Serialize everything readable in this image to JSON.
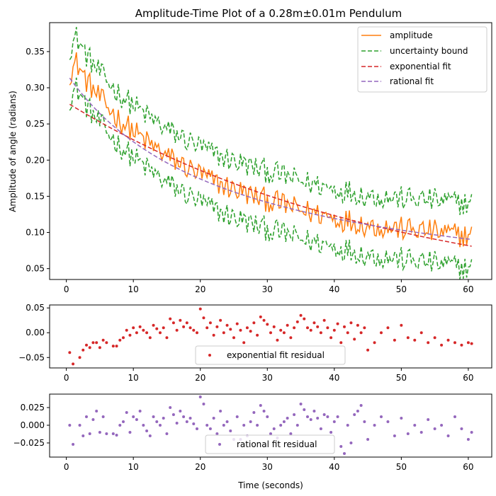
{
  "chart_data": [
    {
      "type": "line",
      "title": "Amplitude-Time Plot of a 0.28m±0.01m Pendulum",
      "xlabel": "",
      "ylabel": "Amplitude of angle (radians)",
      "xlim": [
        -2.5,
        63.5
      ],
      "ylim": [
        0.035,
        0.39
      ],
      "xticks": [
        0,
        10,
        20,
        30,
        40,
        50,
        60
      ],
      "yticks": [
        0.05,
        0.1,
        0.15,
        0.2,
        0.25,
        0.3,
        0.35
      ],
      "yticklabels": [
        "0.05",
        "0.10",
        "0.15",
        "0.20",
        "0.25",
        "0.30",
        "0.35"
      ],
      "grid": false,
      "legend_position": "top-right",
      "series": [
        {
          "name": "amplitude",
          "color": "#ff7f0e",
          "style": "solid",
          "role": "amplitude"
        },
        {
          "name": "uncertainty bound",
          "color": "#2ca02c",
          "style": "dashed",
          "role": "bound"
        },
        {
          "name": "exponential fit",
          "color": "#d62728",
          "style": "dashed",
          "role": "exp_fit"
        },
        {
          "name": "rational fit",
          "color": "#9467bd",
          "style": "dashed",
          "role": "rat_fit"
        }
      ],
      "amplitude_anchor_x": [
        0.5,
        1.5,
        3,
        5,
        8,
        10,
        12,
        15,
        18,
        20,
        22,
        25,
        28,
        30,
        33,
        35,
        38,
        40,
        43,
        45,
        48,
        50,
        53,
        55,
        58,
        60.5
      ],
      "amplitude_anchor_y": [
        0.32,
        0.335,
        0.31,
        0.285,
        0.255,
        0.24,
        0.225,
        0.205,
        0.19,
        0.18,
        0.17,
        0.16,
        0.15,
        0.145,
        0.137,
        0.13,
        0.125,
        0.12,
        0.115,
        0.11,
        0.107,
        0.105,
        0.103,
        0.101,
        0.097,
        0.095
      ],
      "uncertainty_half_width_anchor_x": [
        0.5,
        5,
        10,
        20,
        30,
        40,
        50,
        60.5
      ],
      "uncertainty_half_width_anchor_y": [
        0.035,
        0.035,
        0.036,
        0.038,
        0.04,
        0.04,
        0.042,
        0.045
      ],
      "exponential_fit": {
        "a": 0.28,
        "b": 0.0205,
        "x_start": 0.5,
        "x_end": 60.5
      },
      "rational_fit": {
        "a": 0.32,
        "b": 0.042,
        "x_start": 0.5,
        "x_end": 60.5
      }
    },
    {
      "type": "scatter",
      "xlim": [
        -2.5,
        63.5
      ],
      "ylim": [
        -0.071,
        0.056
      ],
      "xticks": [
        0,
        10,
        20,
        30,
        40,
        50,
        60
      ],
      "yticks": [
        -0.05,
        0.0,
        0.05
      ],
      "yticklabels": [
        "−0.05",
        "0.00",
        "0.05"
      ],
      "legend_position": "bottom-center",
      "series": [
        {
          "name": "exponential fit residual",
          "color": "#d62728",
          "x": [
            0.5,
            1.0,
            2.0,
            2.5,
            3.0,
            3.5,
            4.0,
            4.5,
            5.0,
            5.5,
            6.0,
            7.0,
            7.5,
            8.0,
            8.5,
            9.0,
            9.5,
            10.0,
            10.5,
            11.0,
            11.5,
            12.0,
            12.5,
            13.0,
            13.5,
            14.0,
            14.5,
            15.0,
            15.5,
            16.0,
            16.5,
            17.0,
            17.5,
            18.0,
            18.5,
            19.0,
            19.5,
            20.0,
            20.5,
            21.0,
            21.5,
            22.0,
            22.5,
            23.0,
            23.5,
            24.0,
            24.5,
            25.0,
            25.5,
            26.0,
            26.5,
            27.0,
            27.5,
            28.0,
            28.5,
            29.0,
            29.5,
            30.0,
            30.5,
            31.0,
            31.5,
            32.0,
            32.5,
            33.0,
            33.5,
            34.0,
            34.5,
            35.0,
            35.5,
            36.0,
            36.5,
            37.0,
            37.5,
            38.0,
            38.5,
            39.0,
            39.5,
            40.0,
            40.5,
            41.0,
            41.5,
            42.0,
            42.5,
            43.0,
            43.5,
            44.0,
            44.5,
            45.0,
            46.0,
            47.0,
            48.0,
            49.0,
            50.0,
            51.0,
            52.0,
            53.0,
            54.0,
            55.0,
            56.0,
            57.0,
            58.0,
            59.0,
            60.0,
            60.5
          ],
          "values": [
            -0.04,
            -0.063,
            -0.05,
            -0.035,
            -0.025,
            -0.03,
            -0.02,
            -0.02,
            -0.03,
            -0.015,
            -0.02,
            -0.027,
            -0.027,
            -0.015,
            -0.01,
            0.005,
            -0.005,
            0.01,
            0.0,
            0.012,
            0.005,
            0.0,
            -0.01,
            0.015,
            0.008,
            0.0,
            0.01,
            -0.01,
            0.028,
            0.02,
            0.005,
            0.025,
            0.012,
            0.02,
            0.01,
            0.005,
            0.0,
            0.048,
            0.03,
            0.01,
            0.02,
            -0.005,
            0.012,
            0.025,
            0.0,
            0.015,
            0.007,
            -0.01,
            0.018,
            0.005,
            -0.02,
            0.01,
            0.003,
            0.02,
            -0.005,
            0.032,
            0.025,
            0.017,
            0.0,
            0.012,
            -0.015,
            0.005,
            0.0,
            0.015,
            -0.01,
            0.01,
            0.022,
            0.035,
            0.028,
            0.01,
            0.005,
            0.02,
            0.012,
            0.0,
            0.025,
            0.01,
            -0.01,
            0.005,
            0.018,
            -0.02,
            0.012,
            0.0,
            0.02,
            -0.013,
            0.015,
            0.0,
            0.01,
            -0.035,
            -0.02,
            0.0,
            0.01,
            -0.015,
            0.015,
            -0.01,
            -0.015,
            0.0,
            -0.02,
            -0.01,
            -0.025,
            -0.015,
            -0.02,
            -0.025,
            -0.02,
            -0.022
          ]
        }
      ]
    },
    {
      "type": "scatter",
      "xlabel": "Time (seconds)",
      "xlim": [
        -2.5,
        63.5
      ],
      "ylim": [
        -0.045,
        0.044
      ],
      "xticks": [
        0,
        10,
        20,
        30,
        40,
        50,
        60
      ],
      "yticks": [
        -0.025,
        0.0,
        0.025
      ],
      "yticklabels": [
        "−0.025",
        "0.000",
        "0.025"
      ],
      "legend_position": "bottom-center",
      "series": [
        {
          "name": "rational fit residual",
          "color": "#9467bd",
          "x": [
            0.5,
            1.0,
            2.0,
            2.5,
            3.0,
            3.5,
            4.0,
            4.5,
            5.0,
            5.5,
            6.0,
            7.0,
            7.5,
            8.0,
            8.5,
            9.0,
            9.5,
            10.0,
            10.5,
            11.0,
            11.5,
            12.0,
            12.5,
            13.0,
            13.5,
            14.0,
            14.5,
            15.0,
            15.5,
            16.0,
            16.5,
            17.0,
            17.5,
            18.0,
            18.5,
            19.0,
            19.5,
            20.0,
            20.5,
            21.0,
            21.5,
            22.0,
            22.5,
            23.0,
            23.5,
            24.0,
            24.5,
            25.0,
            25.5,
            26.0,
            26.5,
            27.0,
            27.5,
            28.0,
            28.5,
            29.0,
            29.5,
            30.0,
            30.5,
            31.0,
            31.5,
            32.0,
            32.5,
            33.0,
            33.5,
            34.0,
            34.5,
            35.0,
            35.5,
            36.0,
            36.5,
            37.0,
            37.5,
            38.0,
            38.5,
            39.0,
            39.5,
            40.0,
            40.5,
            41.0,
            41.5,
            42.0,
            42.5,
            43.0,
            43.5,
            44.0,
            44.5,
            45.0,
            46.0,
            47.0,
            48.0,
            49.0,
            50.0,
            51.0,
            52.0,
            53.0,
            54.0,
            55.0,
            56.0,
            57.0,
            58.0,
            59.0,
            60.0,
            60.5
          ],
          "values": [
            0.0,
            -0.027,
            0.0,
            -0.015,
            0.012,
            -0.012,
            0.008,
            0.02,
            -0.01,
            0.012,
            -0.012,
            -0.012,
            -0.014,
            0.0,
            0.005,
            0.018,
            -0.01,
            0.012,
            0.008,
            0.02,
            0.0,
            -0.008,
            -0.015,
            0.012,
            0.005,
            0.0,
            0.01,
            -0.012,
            0.025,
            0.015,
            0.003,
            0.02,
            0.012,
            0.005,
            0.01,
            0.002,
            -0.005,
            0.04,
            0.03,
            0.0,
            -0.005,
            0.01,
            -0.012,
            0.02,
            0.0,
            0.005,
            -0.008,
            -0.02,
            0.012,
            -0.02,
            0.0,
            -0.015,
            0.005,
            0.018,
            0.0,
            0.028,
            0.02,
            0.012,
            -0.012,
            -0.005,
            -0.018,
            0.0,
            0.005,
            0.01,
            -0.012,
            0.015,
            0.0,
            0.03,
            0.022,
            0.012,
            0.008,
            0.02,
            0.01,
            -0.005,
            0.015,
            0.012,
            -0.01,
            0.005,
            0.012,
            -0.03,
            -0.04,
            0.0,
            -0.025,
            0.015,
            0.02,
            0.028,
            0.005,
            -0.02,
            0.0,
            0.012,
            0.005,
            -0.015,
            0.01,
            -0.012,
            0.0,
            -0.01,
            0.008,
            -0.005,
            0.0,
            -0.015,
            0.012,
            -0.005,
            -0.02,
            -0.01
          ]
        }
      ]
    }
  ]
}
